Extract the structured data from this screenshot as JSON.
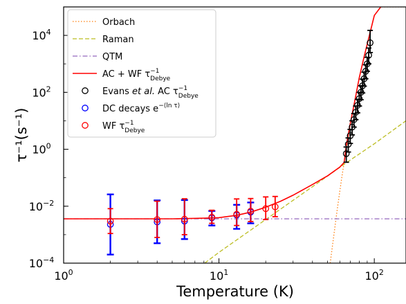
{
  "chart_data": {
    "type": "scatter",
    "xlabel": "Temperature (K)",
    "ylabel": "τ⁻¹(s⁻¹)",
    "xscale": "log",
    "yscale": "log",
    "xlim": [
      1,
      160
    ],
    "ylim": [
      0.0001,
      100000
    ],
    "x_ticks": [
      {
        "value": 1,
        "base": "10",
        "exp": "0"
      },
      {
        "value": 10,
        "base": "10",
        "exp": "1"
      },
      {
        "value": 100,
        "base": "10",
        "exp": "2"
      }
    ],
    "y_ticks": [
      {
        "value": 0.0001,
        "base": "10",
        "exp": "−4"
      },
      {
        "value": 0.01,
        "base": "10",
        "exp": "−2"
      },
      {
        "value": 1,
        "base": "10",
        "exp": "0"
      },
      {
        "value": 100,
        "base": "10",
        "exp": "2"
      },
      {
        "value": 10000,
        "base": "10",
        "exp": "4"
      }
    ],
    "legend_position": "upper-left",
    "legend": [
      {
        "key": "orbach",
        "label": "Orbach",
        "style": "dotted-line",
        "color": "#ff7f0e"
      },
      {
        "key": "raman",
        "label": "Raman",
        "style": "dashed-line",
        "color": "#bcbd22"
      },
      {
        "key": "qtm",
        "label": "QTM",
        "style": "dashdot-line",
        "color": "#9467bd"
      },
      {
        "key": "fit",
        "label": "AC + WF τ",
        "sup": "−1",
        "sub": "Debye",
        "style": "solid-line",
        "color": "#ff0000"
      },
      {
        "key": "evans",
        "label_pre": "Evans ",
        "label_em": "et al.",
        "label_post": " AC τ",
        "sup": "−1",
        "sub": "Debye",
        "style": "open-circle",
        "color": "#000000"
      },
      {
        "key": "dc",
        "label": "DC decays e",
        "sup": "−⟨ln τ⟩",
        "style": "open-circle",
        "color": "#0000ff"
      },
      {
        "key": "wf",
        "label": "WF τ",
        "sup": "−1",
        "sub": "Debye",
        "style": "open-circle",
        "color": "#ff0000"
      }
    ],
    "series": [
      {
        "key": "orbach",
        "type": "line",
        "color": "#ff7f0e",
        "x": [
          52,
          55,
          58,
          62,
          66,
          70,
          75,
          80,
          86,
          92,
          100,
          110,
          120,
          140,
          160
        ],
        "y": [
          0.0001,
          0.00101,
          0.00913,
          0.116,
          1.0,
          7.57,
          52.0,
          324,
          1762,
          7883,
          50200,
          100000,
          100000,
          100000,
          100000
        ]
      },
      {
        "key": "raman",
        "type": "line",
        "color": "#bcbd22",
        "x": [
          8.1,
          10,
          20,
          40,
          66,
          100,
          160
        ],
        "y": [
          0.0001,
          0.00024,
          0.0034,
          0.0485,
          0.335,
          1.563,
          10.0
        ]
      },
      {
        "key": "qtm",
        "type": "line",
        "color": "#9467bd",
        "x": [
          1,
          160
        ],
        "y": [
          0.0036,
          0.0036
        ]
      },
      {
        "key": "fit",
        "type": "line",
        "color": "#ff0000",
        "x": [
          1,
          5,
          8,
          10,
          13,
          16,
          20,
          25,
          30,
          40,
          50,
          60,
          64,
          66,
          70,
          75,
          80,
          86,
          92,
          100,
          110
        ],
        "y": [
          0.0036,
          0.0036,
          0.00379,
          0.00396,
          0.0048,
          0.0062,
          0.0092,
          0.015,
          0.0244,
          0.058,
          0.117,
          0.236,
          0.346,
          1.33,
          7.9,
          52.1,
          324,
          1762,
          7883,
          50200,
          100000
        ]
      },
      {
        "key": "evans",
        "type": "scatter",
        "color": "#000000",
        "x": [
          66,
          68,
          70,
          72,
          74,
          76,
          78,
          80,
          82,
          84,
          86,
          88,
          90,
          92,
          94
        ],
        "y": [
          0.7,
          1.5,
          3.0,
          6.0,
          11.0,
          20.0,
          35.0,
          60.0,
          100.0,
          170.0,
          300.0,
          550.0,
          1000.0,
          2000.0,
          5500.0
        ],
        "err_lo": [
          0.35,
          0.8,
          1.6,
          3.2,
          6.0,
          11.0,
          19.0,
          33.0,
          55.0,
          95.0,
          165.0,
          300.0,
          550.0,
          1000.0,
          2500.0
        ],
        "err_hi": [
          1.2,
          2.5,
          5.0,
          10.0,
          18.0,
          33.0,
          57.0,
          100.0,
          170.0,
          290.0,
          510.0,
          930.0,
          1700.0,
          3600.0,
          15000.0
        ]
      },
      {
        "key": "dc",
        "type": "scatter",
        "color": "#0000ff",
        "x": [
          2,
          4,
          6,
          9,
          13,
          16
        ],
        "y": [
          0.0023,
          0.0028,
          0.003,
          0.0039,
          0.0049,
          0.0062
        ],
        "err_lo": [
          0.0002,
          0.0005,
          0.0007,
          0.0021,
          0.0016,
          0.0025
        ],
        "err_hi": [
          0.026,
          0.016,
          0.0165,
          0.0068,
          0.0112,
          0.0135
        ]
      },
      {
        "key": "wf",
        "type": "scatter",
        "color": "#ff0000",
        "x": [
          2,
          4,
          6,
          9,
          13,
          16,
          20,
          23
        ],
        "y": [
          0.003,
          0.0034,
          0.0035,
          0.0041,
          0.0052,
          0.0067,
          0.0082,
          0.0095
        ],
        "err_lo": [
          0.0011,
          0.0008,
          0.001,
          0.0025,
          0.0021,
          0.0029,
          0.0034,
          0.0043
        ],
        "err_hi": [
          0.0082,
          0.015,
          0.0182,
          0.0072,
          0.018,
          0.0186,
          0.0212,
          0.022
        ]
      }
    ]
  }
}
